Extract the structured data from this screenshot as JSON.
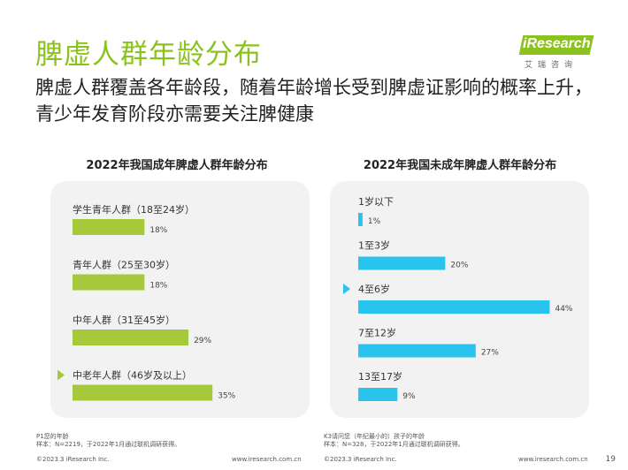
{
  "title": "脾虚人群年龄分布",
  "subtitle": "脾虚人群覆盖各年龄段，随着年龄增长受到脾虚证影响的概率上升，青少年发育阶段亦需要关注脾健康",
  "logo": {
    "brand": "iResearch",
    "sub": "艾瑞咨询"
  },
  "colors": {
    "title_green": "#8cc21f",
    "adult_bar": "#a5c93a",
    "minor_bar": "#29c4ee",
    "panel_bg": "#f2f2f2"
  },
  "chart_data": [
    {
      "type": "bar",
      "orientation": "horizontal",
      "title": "2022年我国成年脾虚人群年龄分布",
      "categories": [
        "学生青年人群（18至24岁）",
        "青年人群（25至30岁）",
        "中年人群（31至45岁）",
        "中老年人群（46岁及以上）"
      ],
      "values": [
        18,
        18,
        29,
        35
      ],
      "value_labels": [
        "18%",
        "18%",
        "29%",
        "35%"
      ],
      "unit": "%",
      "highlight_index": 3,
      "xlim": [
        0,
        50
      ],
      "grid": false
    },
    {
      "type": "bar",
      "orientation": "horizontal",
      "title": "2022年我国未成年脾虚人群年龄分布",
      "categories": [
        "1岁以下",
        "1至3岁",
        "4至6岁",
        "7至12岁",
        "13至17岁"
      ],
      "values": [
        1,
        20,
        44,
        27,
        9
      ],
      "value_labels": [
        "1%",
        "20%",
        "44%",
        "27%",
        "9%"
      ],
      "unit": "%",
      "highlight_index": 2,
      "xlim": [
        0,
        50
      ],
      "grid": false
    }
  ],
  "footer": {
    "left_note_1": "P1您的年龄",
    "left_note_2": "样本：N=2219，于2022年1月通过联机调研获得。",
    "right_note_1": "K3请问您（年纪最小的）孩子的年龄",
    "right_note_2": "样本：N=328，于2022年1月通过联机调研获得。",
    "copyright_left": "©2023.3 iResearch Inc.",
    "url_left": "www.iresearch.com.cn",
    "copyright_right": "©2023.3 iResearch Inc.",
    "url_right": "www.iresearch.com.cn",
    "page": "19"
  }
}
